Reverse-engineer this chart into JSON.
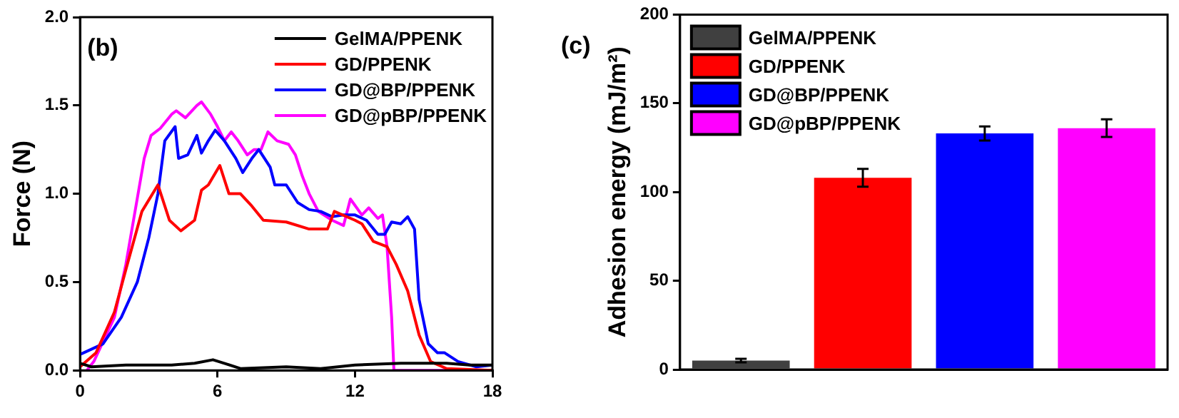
{
  "chart_data": [
    {
      "type": "line",
      "ylabel": "Force (N)",
      "annotations": [
        "(b)"
      ],
      "xlim": [
        0,
        18
      ],
      "xticks": [
        0,
        6,
        12,
        18
      ],
      "ylim": [
        0,
        2
      ],
      "yticks": [
        {
          "value": 0,
          "label": "0.0"
        },
        0.5,
        {
          "value": 1,
          "label": "1.0"
        },
        1.5,
        {
          "value": 2,
          "label": "2.0"
        }
      ],
      "legend": "top right",
      "grid": false,
      "series": [
        {
          "name": "GelMA/PPENK",
          "color": "#000000",
          "x": [
            0,
            0.5,
            2,
            3,
            4,
            5,
            5.8,
            6.3,
            7,
            9,
            10.5,
            12,
            14,
            16,
            17,
            18
          ],
          "values": [
            0.04,
            0.02,
            0.03,
            0.03,
            0.03,
            0.04,
            0.06,
            0.04,
            0.01,
            0.02,
            0.01,
            0.03,
            0.04,
            0.04,
            0.03,
            0.03
          ]
        },
        {
          "name": "GD/PPENK",
          "color": "#ff0000",
          "x": [
            0,
            0.7,
            1.5,
            2,
            2.7,
            3.4,
            3.9,
            4.4,
            5,
            5.3,
            5.6,
            6.1,
            6.5,
            7,
            7.5,
            8,
            9,
            10,
            10.8,
            11.1,
            12,
            12.3,
            12.8,
            13.4,
            13.8,
            14.3,
            14.8,
            15.3,
            16,
            18
          ],
          "values": [
            0.02,
            0.1,
            0.33,
            0.57,
            0.9,
            1.05,
            0.85,
            0.79,
            0.85,
            1.02,
            1.05,
            1.16,
            1.0,
            1.0,
            0.93,
            0.85,
            0.84,
            0.8,
            0.8,
            0.9,
            0.85,
            0.83,
            0.73,
            0.7,
            0.6,
            0.45,
            0.2,
            0.05,
            0.01,
            0
          ]
        },
        {
          "name": "GD@BP/PPENK",
          "color": "#0000ff",
          "x": [
            0,
            1,
            1.8,
            2.5,
            3,
            3.4,
            3.7,
            4.15,
            4.3,
            4.7,
            5.1,
            5.3,
            5.6,
            5.9,
            6.3,
            6.8,
            7.1,
            7.5,
            7.8,
            8.3,
            8.5,
            9,
            9.5,
            10,
            10.5,
            11,
            11.5,
            12,
            12.5,
            13,
            13.3,
            13.6,
            14,
            14.3,
            14.6,
            14.8,
            15.2,
            15.6,
            15.9,
            16.5,
            17.3,
            18
          ],
          "values": [
            0.09,
            0.15,
            0.3,
            0.5,
            0.75,
            1.0,
            1.3,
            1.38,
            1.2,
            1.22,
            1.33,
            1.23,
            1.3,
            1.36,
            1.3,
            1.2,
            1.12,
            1.2,
            1.25,
            1.15,
            1.05,
            1.05,
            0.95,
            0.91,
            0.9,
            0.87,
            0.88,
            0.88,
            0.85,
            0.77,
            0.77,
            0.84,
            0.83,
            0.87,
            0.8,
            0.4,
            0.15,
            0.1,
            0.1,
            0.05,
            0.02,
            0.03
          ]
        },
        {
          "name": "GD@pBP/PPENK",
          "color": "#ff00ff",
          "x": [
            0.3,
            0.6,
            1.5,
            2,
            2.4,
            2.8,
            3.1,
            3.5,
            4,
            4.2,
            4.6,
            5.1,
            5.3,
            5.7,
            6,
            6.3,
            6.6,
            6.9,
            7.3,
            7.6,
            7.9,
            8.2,
            8.6,
            9.1,
            9.4,
            9.7,
            10,
            10.4,
            11,
            11.5,
            11.8,
            12.3,
            12.6,
            13,
            13.2,
            13.4,
            13.6,
            13.7,
            18
          ],
          "values": [
            0,
            0.05,
            0.3,
            0.6,
            0.9,
            1.2,
            1.33,
            1.37,
            1.45,
            1.47,
            1.43,
            1.5,
            1.52,
            1.45,
            1.38,
            1.3,
            1.35,
            1.3,
            1.22,
            1.25,
            1.25,
            1.35,
            1.3,
            1.28,
            1.22,
            1.1,
            1.0,
            0.9,
            0.85,
            0.82,
            0.97,
            0.88,
            0.92,
            0.86,
            0.88,
            0.7,
            0.3,
            0,
            0
          ]
        }
      ]
    },
    {
      "type": "bar",
      "ylabel": "Adhesion energy (mJ/m²)",
      "annotations": [
        "(c)"
      ],
      "categories": [
        null,
        null,
        null,
        null
      ],
      "ylim": [
        0,
        200
      ],
      "yticks": [
        0,
        50,
        100,
        150,
        200
      ],
      "legend": "top left",
      "grid": false,
      "tick_labels": "y",
      "series": [
        {
          "name": "GelMA/PPENK",
          "color": "#404040",
          "values": [
            5,
            null,
            null,
            null
          ],
          "errors": [
            1,
            null,
            null,
            null
          ]
        },
        {
          "name": "GD/PPENK",
          "color": "#ff0000",
          "values": [
            null,
            108,
            null,
            null
          ],
          "errors": [
            null,
            5,
            null,
            null
          ]
        },
        {
          "name": "GD@BP/PPENK",
          "color": "#0000ff",
          "values": [
            null,
            null,
            133,
            null
          ],
          "errors": [
            null,
            null,
            4,
            null
          ]
        },
        {
          "name": "GD@pBP/PPENK",
          "color": "#ff00ff",
          "values": [
            null,
            null,
            null,
            136
          ],
          "errors": [
            null,
            null,
            null,
            5
          ]
        }
      ]
    }
  ]
}
